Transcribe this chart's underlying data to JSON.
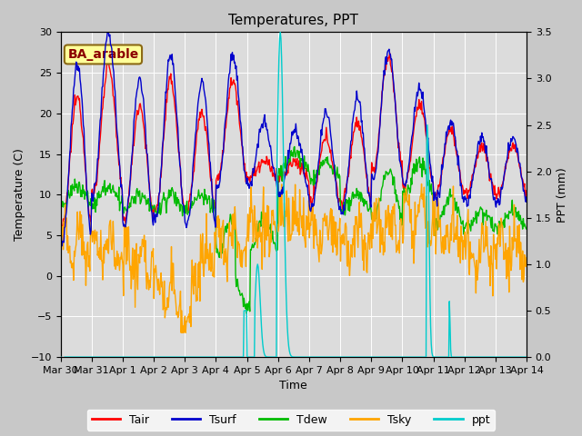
{
  "title": "Temperatures, PPT",
  "xlabel": "Time",
  "ylabel_left": "Temperature (C)",
  "ylabel_right": "PPT (mm)",
  "ylim_left": [
    -10,
    30
  ],
  "ylim_right": [
    0.0,
    3.5
  ],
  "xtick_labels": [
    "Mar 30",
    "Mar 31",
    "Apr 1",
    "Apr 2",
    "Apr 3",
    "Apr 4",
    "Apr 5",
    "Apr 6",
    "Apr 7",
    "Apr 8",
    "Apr 9",
    "Apr 10",
    "Apr 11",
    "Apr 12",
    "Apr 13",
    "Apr 14"
  ],
  "annotation_text": "BA_arable",
  "annotation_color": "#8B0000",
  "annotation_bg": "#FFFF99",
  "annotation_border": "#8B6914",
  "fig_bg_color": "#C8C8C8",
  "plot_bg": "#DCDCDC",
  "line_colors": {
    "Tair": "#FF0000",
    "Tsurf": "#0000CC",
    "Tdew": "#00BB00",
    "Tsky": "#FFA500",
    "ppt": "#00CCCC"
  },
  "legend_labels": [
    "Tair",
    "Tsurf",
    "Tdew",
    "Tsky",
    "ppt"
  ],
  "yticks_left": [
    -10,
    -5,
    0,
    5,
    10,
    15,
    20,
    25,
    30
  ],
  "yticks_right": [
    0.0,
    0.5,
    1.0,
    1.5,
    2.0,
    2.5,
    3.0,
    3.5
  ],
  "n_days": 15,
  "n_per_day": 48
}
